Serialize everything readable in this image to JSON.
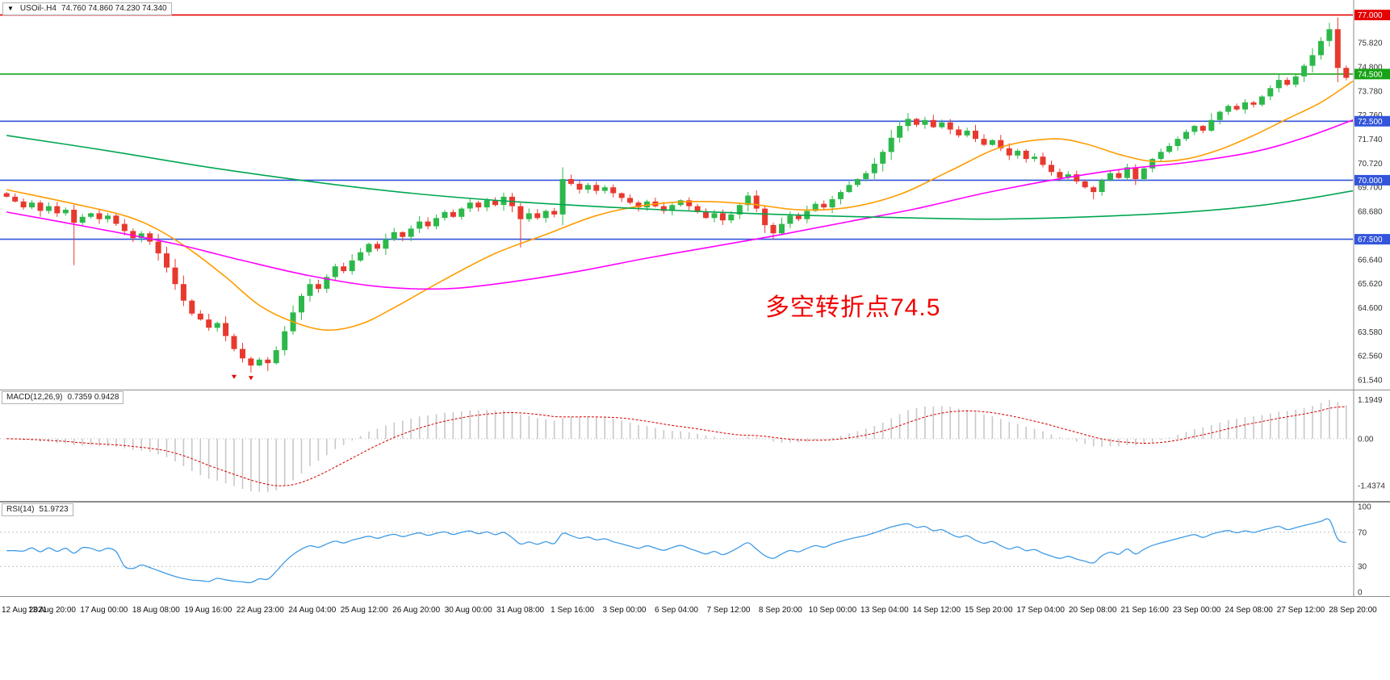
{
  "header": {
    "marker": "▼",
    "symbol": "USOil-.H4",
    "ohlc": "74.760 74.860 74.230 74.340"
  },
  "annotation": {
    "text": "多空转折点74.5",
    "color": "#f20000"
  },
  "indicators": {
    "macd": {
      "label": "MACD(12,26,9)",
      "values": "0.7359 0.9428",
      "axis": [
        {
          "text": "1.1949",
          "value": 1.1949
        },
        {
          "text": "0.00",
          "value": 0
        },
        {
          "text": "-1.4374",
          "value": -1.4374
        }
      ],
      "axis_max": 1.1949,
      "axis_min": -1.4374,
      "histogram_color": "#c8c8c8",
      "signal_color": "#d40000"
    },
    "rsi": {
      "label": "RSI(14)",
      "value": "51.9723",
      "period": 14,
      "levels": [
        70,
        30
      ],
      "axis": [
        {
          "text": "100",
          "value": 100
        },
        {
          "text": "70",
          "value": 70
        },
        {
          "text": "30",
          "value": 30
        },
        {
          "text": "0",
          "value": 0
        }
      ],
      "line_color": "#3f9be6"
    }
  },
  "chart_data": {
    "type": "candlestick",
    "symbol": "USOil-.H4",
    "timeframe": "H4",
    "current_bar": {
      "open": 74.76,
      "high": 74.86,
      "low": 74.23,
      "close": 74.34
    },
    "ylim": [
      61.3,
      77.5
    ],
    "colors": {
      "up": "#2db84b",
      "down": "#e8392e"
    },
    "closes": [
      69.3,
      69.1,
      68.85,
      69.05,
      68.7,
      68.9,
      68.6,
      68.75,
      68.2,
      68.45,
      68.6,
      68.35,
      68.5,
      68.15,
      67.85,
      67.55,
      67.75,
      67.4,
      66.9,
      66.3,
      65.6,
      64.9,
      64.35,
      64.1,
      63.75,
      63.95,
      63.4,
      62.85,
      62.45,
      62.15,
      62.4,
      62.25,
      62.8,
      63.6,
      64.4,
      65.1,
      65.6,
      65.4,
      65.9,
      66.35,
      66.15,
      66.6,
      66.95,
      67.3,
      67.1,
      67.5,
      67.8,
      67.6,
      67.95,
      68.25,
      68.05,
      68.4,
      68.65,
      68.45,
      68.8,
      69.05,
      68.85,
      69.15,
      68.95,
      69.3,
      68.9,
      68.35,
      68.6,
      68.4,
      68.7,
      68.55,
      70.05,
      69.85,
      69.6,
      69.8,
      69.55,
      69.7,
      69.45,
      69.25,
      69.05,
      68.85,
      69.1,
      68.9,
      68.7,
      68.95,
      69.15,
      68.9,
      68.65,
      68.4,
      68.6,
      68.3,
      68.55,
      68.95,
      69.35,
      68.8,
      68.1,
      67.75,
      68.15,
      68.5,
      68.35,
      68.7,
      69.0,
      68.85,
      69.2,
      69.5,
      69.8,
      70.05,
      70.3,
      70.7,
      71.2,
      71.8,
      72.3,
      72.6,
      72.35,
      72.55,
      72.25,
      72.45,
      72.15,
      71.9,
      72.1,
      71.75,
      71.5,
      71.7,
      71.35,
      71.05,
      71.25,
      70.9,
      71.0,
      70.65,
      70.35,
      70.1,
      70.25,
      69.95,
      69.7,
      69.5,
      70.0,
      70.3,
      70.1,
      70.55,
      70.05,
      70.5,
      70.9,
      71.2,
      71.45,
      71.75,
      72.05,
      72.3,
      72.1,
      72.55,
      72.9,
      73.15,
      73.0,
      73.3,
      73.2,
      73.55,
      73.9,
      74.25,
      74.05,
      74.4,
      74.85,
      75.3,
      75.9,
      76.4,
      74.76,
      74.34
    ],
    "wick_overrides": {
      "8": {
        "low": 66.4
      },
      "29": {
        "low": 61.85
      },
      "31": {
        "low": 61.92
      },
      "61": {
        "low": 67.15
      },
      "66": {
        "high": 70.55
      },
      "91": {
        "low": 67.5
      },
      "107": {
        "high": 72.85
      },
      "129": {
        "low": 69.2
      },
      "134": {
        "low": 69.8
      },
      "157": {
        "high": 76.67
      },
      "159": {
        "high": 74.86,
        "low": 74.23
      }
    },
    "sell_markers": [
      {
        "index": 27,
        "price": 61.75
      },
      {
        "index": 29,
        "price": 61.7
      }
    ],
    "moving_averages": [
      {
        "name": "ma-fast-line",
        "color": "#ff9d00",
        "anchors": [
          [
            0,
            69.6
          ],
          [
            8,
            69.0
          ],
          [
            14,
            68.5
          ],
          [
            18,
            67.9
          ],
          [
            22,
            67.0
          ],
          [
            26,
            65.9
          ],
          [
            30,
            64.7
          ],
          [
            34,
            64.0
          ],
          [
            38,
            63.65
          ],
          [
            42,
            63.9
          ],
          [
            46,
            64.6
          ],
          [
            52,
            65.8
          ],
          [
            58,
            66.9
          ],
          [
            64,
            67.7
          ],
          [
            70,
            68.5
          ],
          [
            76,
            68.95
          ],
          [
            82,
            69.1
          ],
          [
            88,
            69.0
          ],
          [
            94,
            68.75
          ],
          [
            100,
            68.85
          ],
          [
            106,
            69.4
          ],
          [
            112,
            70.4
          ],
          [
            118,
            71.4
          ],
          [
            124,
            71.75
          ],
          [
            128,
            71.55
          ],
          [
            132,
            71.1
          ],
          [
            136,
            70.8
          ],
          [
            140,
            70.9
          ],
          [
            144,
            71.3
          ],
          [
            148,
            71.9
          ],
          [
            152,
            72.6
          ],
          [
            156,
            73.3
          ],
          [
            160,
            74.2
          ]
        ]
      },
      {
        "name": "ma-mid-line",
        "color": "#ff00ff",
        "anchors": [
          [
            0,
            68.65
          ],
          [
            10,
            68.0
          ],
          [
            20,
            67.3
          ],
          [
            28,
            66.6
          ],
          [
            36,
            65.95
          ],
          [
            44,
            65.5
          ],
          [
            52,
            65.4
          ],
          [
            60,
            65.7
          ],
          [
            68,
            66.15
          ],
          [
            76,
            66.7
          ],
          [
            84,
            67.2
          ],
          [
            92,
            67.7
          ],
          [
            100,
            68.25
          ],
          [
            108,
            68.8
          ],
          [
            116,
            69.45
          ],
          [
            124,
            70.0
          ],
          [
            132,
            70.45
          ],
          [
            140,
            70.75
          ],
          [
            148,
            71.2
          ],
          [
            154,
            71.8
          ],
          [
            160,
            72.55
          ]
        ]
      },
      {
        "name": "ma-slow-line",
        "color": "#00a651",
        "anchors": [
          [
            0,
            71.9
          ],
          [
            12,
            71.25
          ],
          [
            24,
            70.55
          ],
          [
            36,
            69.95
          ],
          [
            48,
            69.45
          ],
          [
            60,
            69.1
          ],
          [
            72,
            68.85
          ],
          [
            84,
            68.65
          ],
          [
            96,
            68.5
          ],
          [
            108,
            68.4
          ],
          [
            116,
            68.35
          ],
          [
            124,
            68.4
          ],
          [
            132,
            68.5
          ],
          [
            140,
            68.65
          ],
          [
            148,
            68.9
          ],
          [
            154,
            69.2
          ],
          [
            160,
            69.55
          ]
        ]
      }
    ],
    "hlines": [
      {
        "price": 77.0,
        "label": "77.000",
        "color": "#e60000"
      },
      {
        "price": 74.5,
        "label": "74.500",
        "color": "#17a317"
      },
      {
        "price": 72.5,
        "label": "72.500",
        "color": "#3355db"
      },
      {
        "price": 70.0,
        "label": "70.000",
        "color": "#3355db"
      },
      {
        "price": 67.5,
        "label": "67.500",
        "color": "#3355db"
      }
    ],
    "price_axis_ticks": [
      {
        "text": "75.820",
        "value": 75.82
      },
      {
        "text": "74.800",
        "value": 74.8
      },
      {
        "text": "73.780",
        "value": 73.78
      },
      {
        "text": "72.760",
        "value": 72.76
      },
      {
        "text": "71.740",
        "value": 71.74
      },
      {
        "text": "70.720",
        "value": 70.72
      },
      {
        "text": "69.700",
        "value": 69.7
      },
      {
        "text": "68.680",
        "value": 68.68
      },
      {
        "text": "66.640",
        "value": 66.64
      },
      {
        "text": "65.620",
        "value": 65.62
      },
      {
        "text": "64.600",
        "value": 64.6
      },
      {
        "text": "63.580",
        "value": 63.58
      },
      {
        "text": "62.560",
        "value": 62.56
      },
      {
        "text": "61.540",
        "value": 61.54
      }
    ],
    "x_labels": [
      "12 Aug 2021",
      "13 Aug 20:00",
      "17 Aug 00:00",
      "18 Aug 08:00",
      "19 Aug 16:00",
      "22 Aug 23:00",
      "24 Aug 04:00",
      "25 Aug 12:00",
      "26 Aug 20:00",
      "30 Aug 00:00",
      "31 Aug 08:00",
      "1 Sep 16:00",
      "3 Sep 00:00",
      "6 Sep 04:00",
      "7 Sep 12:00",
      "8 Sep 20:00",
      "10 Sep 00:00",
      "13 Sep 04:00",
      "14 Sep 12:00",
      "15 Sep 20:00",
      "17 Sep 04:00",
      "20 Sep 08:00",
      "21 Sep 16:00",
      "23 Sep 00:00",
      "24 Sep 08:00",
      "27 Sep 12:00",
      "28 Sep 20:00"
    ]
  }
}
